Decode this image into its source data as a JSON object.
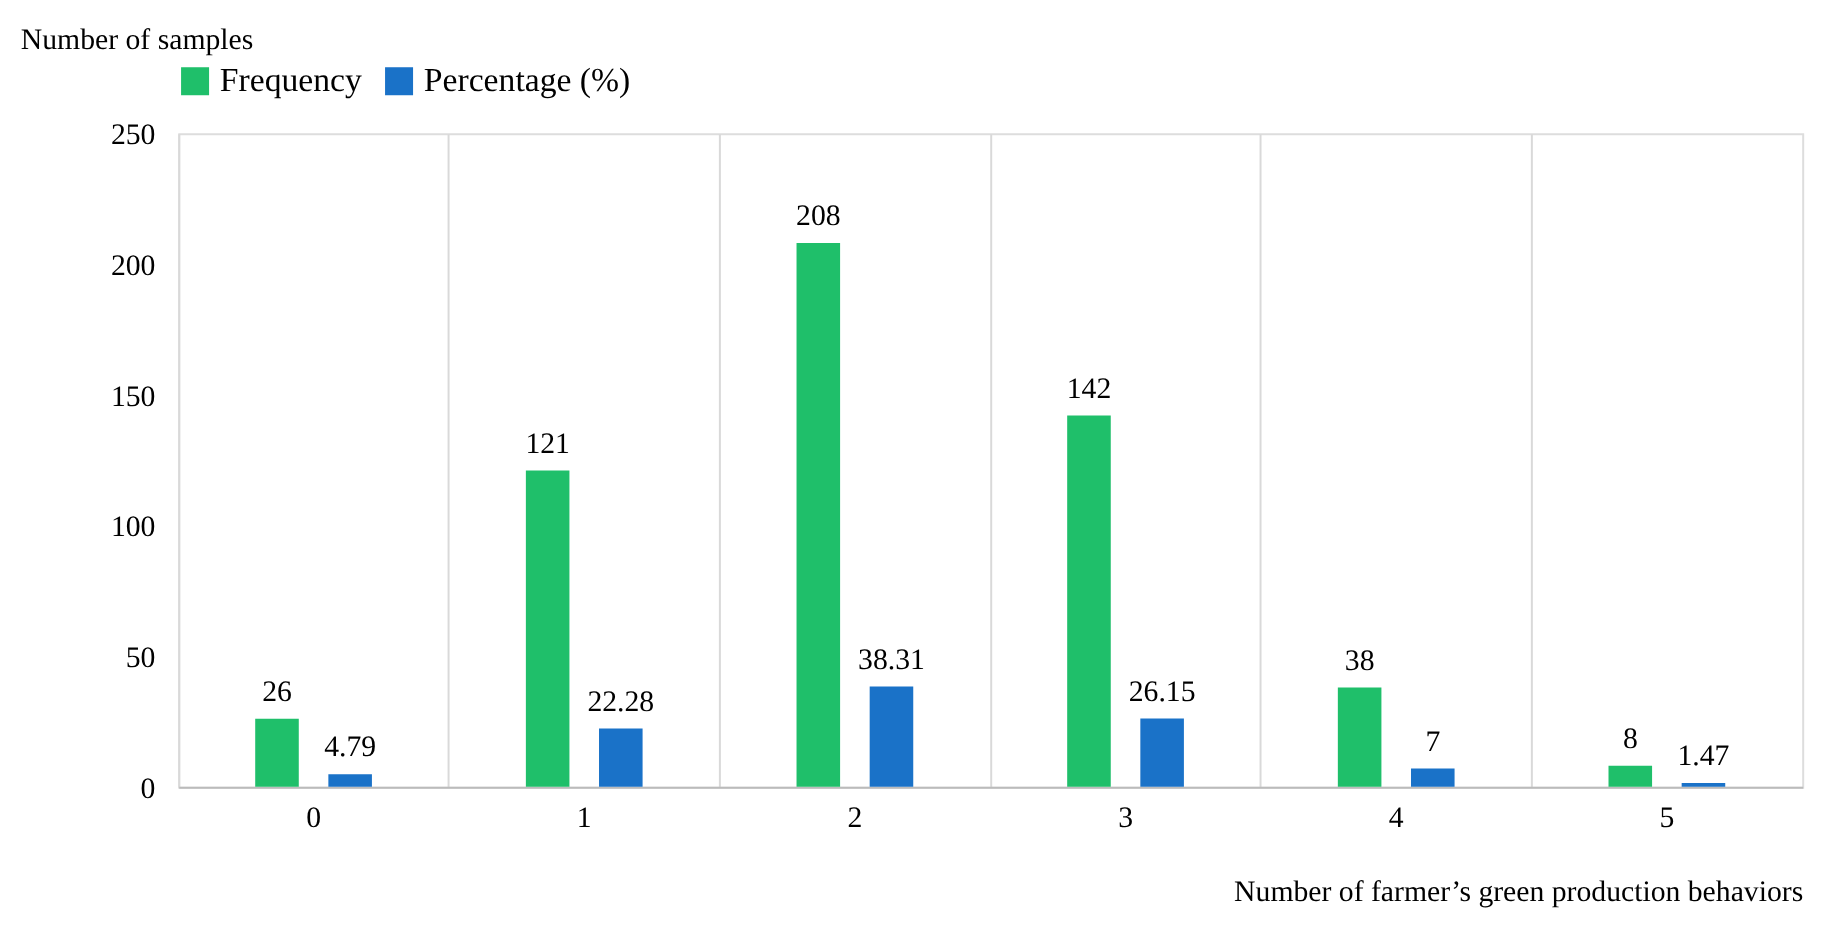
{
  "chart_data": {
    "type": "bar",
    "xlabel": "Number of farmer’s green production behaviors",
    "ylabel": "Number of samples",
    "categories": [
      "0",
      "1",
      "2",
      "3",
      "4",
      "5"
    ],
    "series": [
      {
        "name": "Frequency",
        "color": "#1fbf6a",
        "values": [
          26,
          121,
          208,
          142,
          38,
          8
        ]
      },
      {
        "name": "Percentage (%)",
        "color": "#1a72c8",
        "values": [
          4.79,
          22.28,
          38.31,
          26.15,
          7,
          1.47
        ]
      }
    ],
    "ylim": [
      0,
      250
    ],
    "yticks": [
      0,
      50,
      100,
      150,
      200,
      250
    ],
    "grid": "x",
    "legend": "top",
    "data_labels": true
  }
}
